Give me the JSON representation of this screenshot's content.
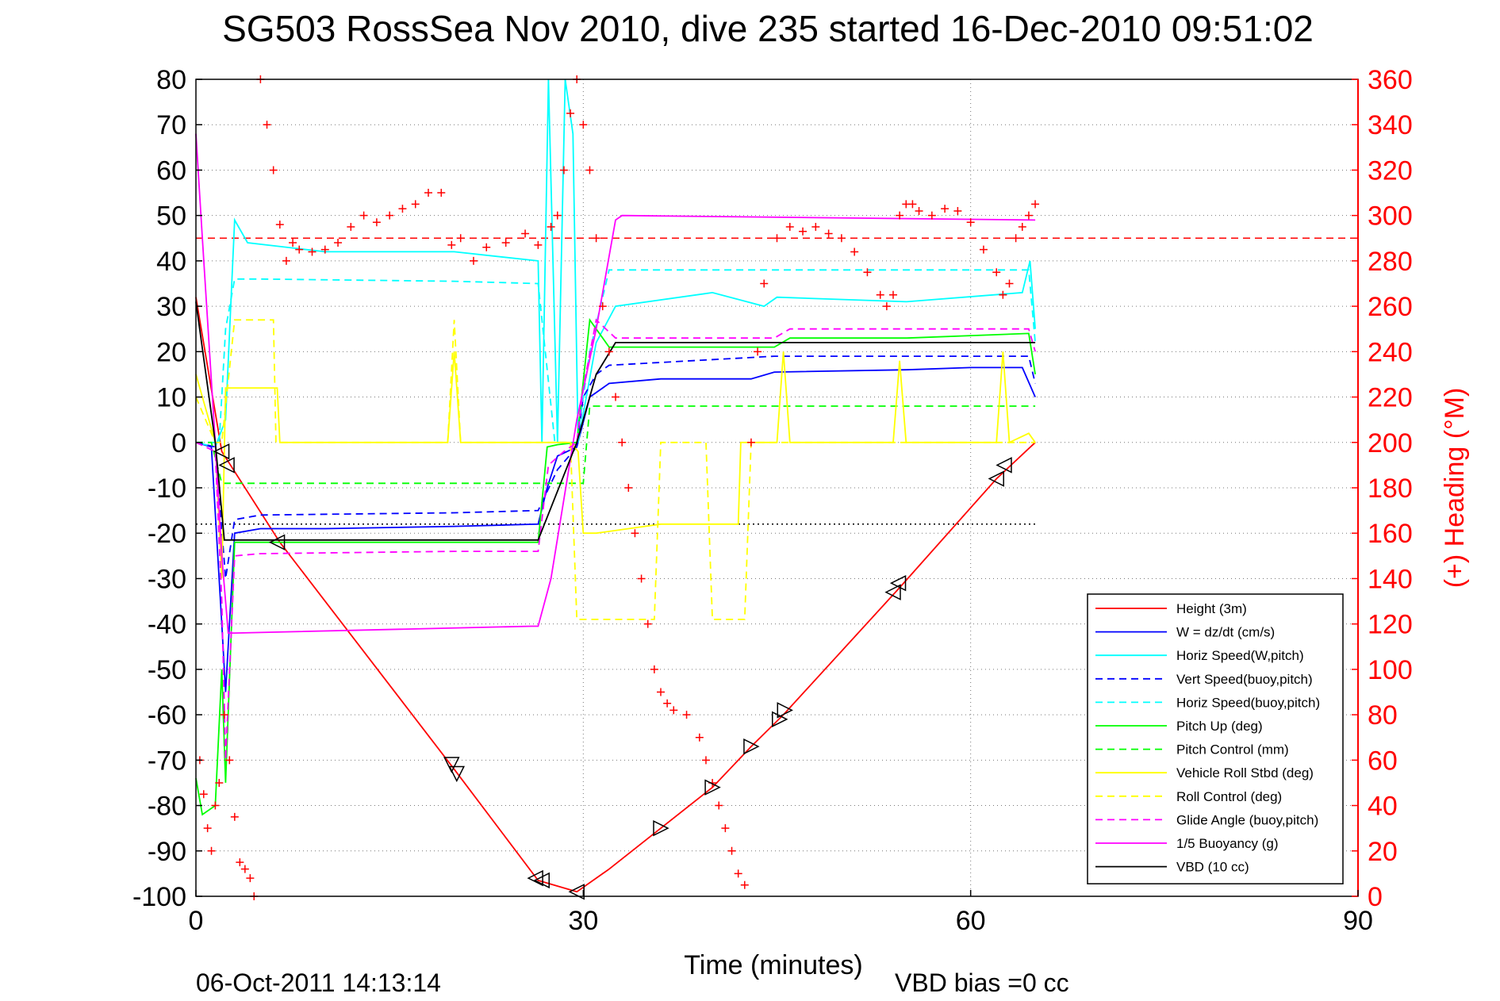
{
  "chart_data": {
    "type": "line",
    "title": "SG503 RossSea Nov 2010, dive 235 started 16-Dec-2010 09:51:02",
    "xlabel": "Time (minutes)",
    "ylabel": "",
    "ylabel_right": "(+) Heading (°M)",
    "xlim": [
      0,
      90
    ],
    "ylim": [
      -100,
      80
    ],
    "ylim_right": [
      0,
      360
    ],
    "x_ticks": [
      "0",
      "30",
      "60",
      "90"
    ],
    "y_ticks": [
      "80",
      "70",
      "60",
      "50",
      "40",
      "30",
      "20",
      "10",
      "0",
      "-10",
      "-20",
      "-30",
      "-40",
      "-50",
      "-60",
      "-70",
      "-80",
      "-90",
      "-100"
    ],
    "y_right_ticks": [
      "360",
      "340",
      "320",
      "300",
      "280",
      "260",
      "240",
      "220",
      "200",
      "180",
      "160",
      "140",
      "120",
      "100",
      "80",
      "60",
      "40",
      "20",
      "0"
    ],
    "grid": true,
    "legend_position": "bottom-right",
    "footer_left": "06-Oct-2011 14:13:14",
    "footer_right": "VBD bias =0 cc",
    "series": [
      {
        "name": "Height (3m)",
        "color": "#ff0000",
        "dash": "solid",
        "x": [
          0,
          2,
          6.5,
          20,
          26.5,
          29.5,
          32,
          36,
          40,
          43,
          45.5,
          54.5,
          62,
          65
        ],
        "y": [
          32,
          -2,
          -22,
          -72,
          -96.5,
          -99,
          -94,
          -85,
          -76,
          -67,
          -60,
          -32,
          -8,
          0
        ]
      },
      {
        "name": "W = dz/dt (cm/s)",
        "color": "#0000ff",
        "dash": "solid",
        "x": [
          0,
          1.2,
          2,
          2.3,
          3,
          5,
          10,
          20,
          26.5,
          27.2,
          28,
          29.5,
          30.5,
          32,
          36,
          43,
          44.8,
          55,
          60,
          64,
          65
        ],
        "y": [
          0,
          -1,
          -40,
          -55,
          -20,
          -19,
          -19,
          -18.5,
          -18,
          -10,
          -3,
          -1,
          10,
          13,
          14,
          14,
          15.5,
          16,
          16.5,
          16.5,
          10
        ]
      },
      {
        "name": "Horiz Speed(W,pitch)",
        "color": "#00ffff",
        "dash": "solid",
        "x": [
          0,
          1.5,
          2.3,
          3,
          4,
          10,
          20,
          26.5,
          26.8,
          27.3,
          28,
          28.6,
          29.2,
          29.6,
          31,
          32.5,
          40,
          44,
          45,
          55,
          64,
          64.6,
          65
        ],
        "y": [
          0,
          -1,
          5,
          49,
          44,
          42,
          42,
          40,
          0,
          80,
          0,
          80,
          68,
          0,
          22,
          30,
          33,
          30,
          32,
          31,
          33,
          40,
          25
        ]
      },
      {
        "name": "Vert Speed(buoy,pitch)",
        "color": "#0000ff",
        "dash": "dashed",
        "x": [
          0,
          1.5,
          2.3,
          3,
          5,
          20,
          26.5,
          28,
          29.5,
          30,
          31,
          32,
          44.8,
          55,
          64.5,
          65
        ],
        "y": [
          0,
          -1,
          -30,
          -17,
          -16,
          -15.5,
          -15,
          -6,
          -1,
          10,
          15,
          17,
          19,
          19,
          19,
          13
        ]
      },
      {
        "name": "Horiz Speed(buoy,pitch)",
        "color": "#00ffff",
        "dash": "dashed",
        "x": [
          0,
          1.8,
          2.3,
          3,
          5,
          20,
          26.5,
          27.8,
          29.5,
          30.5,
          32,
          40,
          64.5,
          65
        ],
        "y": [
          0,
          0,
          25,
          36,
          36,
          35.5,
          35,
          0,
          0,
          20,
          38,
          38,
          38,
          22
        ]
      },
      {
        "name": "Pitch Up (deg)",
        "color": "#00ff00",
        "dash": "solid",
        "x": [
          0,
          0.5,
          1.5,
          2,
          2.3,
          3,
          5,
          20,
          26.5,
          27.2,
          28,
          29.5,
          30.5,
          32,
          44.8,
          46,
          55,
          64.5,
          65
        ],
        "y": [
          -74,
          -82,
          -80,
          -50,
          -75,
          -22,
          -22,
          -22,
          -22,
          -1,
          -0.5,
          0,
          27,
          21,
          21,
          23,
          23,
          24,
          15
        ]
      },
      {
        "name": "Pitch Control (mm)",
        "color": "#00ff00",
        "dash": "dashed",
        "x": [
          0,
          1.2,
          2,
          3,
          10,
          26.5,
          30,
          30.5,
          35,
          65
        ],
        "y": [
          0,
          0,
          -9,
          -9,
          -9,
          -9,
          -9,
          8,
          8,
          8
        ]
      },
      {
        "name": "Vehicle Roll Stbd (deg)",
        "color": "#ffff00",
        "dash": "solid",
        "x": [
          0,
          1.5,
          2,
          2.3,
          5,
          6.3,
          6.5,
          19.5,
          20,
          20.5,
          26.5,
          26.8,
          29,
          29.6,
          30,
          31,
          36,
          36.2,
          42,
          42.2,
          45,
          45.5,
          46,
          54,
          54.5,
          55,
          62,
          62.5,
          63,
          64.5,
          65
        ],
        "y": [
          15,
          0,
          -30,
          12,
          12,
          12,
          0,
          0,
          20,
          0,
          0,
          0,
          0,
          -2,
          -20,
          -20,
          -18,
          -18,
          -18,
          0,
          0,
          20,
          0,
          0,
          18,
          0,
          0,
          20,
          0,
          2,
          0
        ]
      },
      {
        "name": "Roll Control (deg)",
        "color": "#ffff00",
        "dash": "dashed",
        "x": [
          0,
          1.5,
          2,
          3,
          6,
          6.2,
          19.5,
          20,
          20.5,
          26.5,
          29,
          29.5,
          35.5,
          36,
          39.5,
          40,
          42.5,
          43,
          65
        ],
        "y": [
          10,
          0,
          0,
          27,
          27,
          0,
          0,
          27,
          0,
          0,
          0,
          -39,
          -39,
          0,
          0,
          -39,
          -39,
          0,
          0
        ]
      },
      {
        "name": "Glide Angle (buoy,pitch)",
        "color": "#ff00ff",
        "dash": "dashed",
        "x": [
          0,
          1.5,
          2,
          2.3,
          3,
          5,
          20,
          26.5,
          27.3,
          28.5,
          29.5,
          30,
          31,
          32.5,
          44.8,
          46,
          55,
          64.5,
          65
        ],
        "y": [
          0,
          -2,
          -35,
          -70,
          -25,
          -24.5,
          -24,
          -24,
          -5,
          -2,
          0,
          12,
          27,
          23,
          23,
          25,
          25,
          25,
          20
        ]
      },
      {
        "name": "1/5 Buoyancy (g)",
        "color": "#ff00ff",
        "dash": "solid",
        "x": [
          0,
          0.5,
          1.5,
          2,
          2.5,
          3,
          26,
          26.5,
          27.5,
          29.5,
          31,
          32.5,
          33,
          65
        ],
        "y": [
          68,
          45,
          0,
          -25,
          -42,
          -42,
          -40.5,
          -40.5,
          -30,
          5,
          25,
          49,
          50,
          49
        ]
      },
      {
        "name": "VBD (10 cc)",
        "color": "#000000",
        "dash": "solid",
        "x": [
          0,
          1.5,
          2.2,
          3,
          26,
          26.5,
          29.5,
          31,
          32.5,
          33,
          65
        ],
        "y": [
          31,
          0,
          -21.5,
          -21.5,
          -21.5,
          -21.5,
          0,
          15,
          22,
          22,
          22
        ]
      }
    ],
    "reference_lines": [
      {
        "color": "#ff0000",
        "dash": "dashed",
        "axis": "right",
        "value": 290
      },
      {
        "color": "#000000",
        "dash": "dotted",
        "axis": "left",
        "value": -18,
        "x": [
          0,
          65
        ]
      }
    ],
    "heading_points": {
      "name": "(+) Heading (°M)",
      "color": "#ff0000",
      "marker": "+",
      "axis": "right",
      "x": [
        0.3,
        0.6,
        0.9,
        1.2,
        1.5,
        1.8,
        2.2,
        2.6,
        3.0,
        3.4,
        3.8,
        4.2,
        4.5,
        5.0,
        5.5,
        6.0,
        6.5,
        7.0,
        7.5,
        8.0,
        9.0,
        10.0,
        11.0,
        12.0,
        13.0,
        14.0,
        15.0,
        16.0,
        17.0,
        18.0,
        19.0,
        19.8,
        20.5,
        21.5,
        22.5,
        24.0,
        25.5,
        26.5,
        27.5,
        28.0,
        28.5,
        29.0,
        29.5,
        30.0,
        30.5,
        31.0,
        31.5,
        32.0,
        32.5,
        33.0,
        33.5,
        34.0,
        34.5,
        35.0,
        35.5,
        36.0,
        36.5,
        37.0,
        38.0,
        39.0,
        39.5,
        40.0,
        40.5,
        41.0,
        41.5,
        42.0,
        42.5,
        43.0,
        43.5,
        44.0,
        45.0,
        46.0,
        47.0,
        48.0,
        49.0,
        50.0,
        51.0,
        52.0,
        53.0,
        53.5,
        54.0,
        54.5,
        55.0,
        55.5,
        56.0,
        57.0,
        58.0,
        59.0,
        60.0,
        61.0,
        62.0,
        62.5,
        63.0,
        63.5,
        64.0,
        64.5,
        65.0
      ],
      "y": [
        60,
        45,
        30,
        20,
        40,
        50,
        80,
        60,
        35,
        15,
        12,
        8,
        0,
        360,
        340,
        320,
        296,
        280,
        288,
        285,
        284,
        285,
        288,
        295,
        300,
        297,
        300,
        303,
        305,
        310,
        310,
        287,
        290,
        280,
        286,
        288,
        292,
        287,
        295,
        300,
        320,
        345,
        360,
        340,
        320,
        290,
        260,
        240,
        220,
        200,
        180,
        160,
        140,
        120,
        100,
        90,
        85,
        82,
        80,
        70,
        60,
        50,
        40,
        30,
        20,
        10,
        5,
        200,
        240,
        270,
        290,
        295,
        293,
        295,
        292,
        290,
        284,
        275,
        265,
        260,
        265,
        300,
        305,
        305,
        302,
        300,
        303,
        302,
        297,
        285,
        275,
        265,
        270,
        290,
        295,
        300,
        305
      ]
    },
    "depth_markers": {
      "color": "#000000",
      "x": [
        2,
        2.4,
        6.3,
        19.8,
        20.2,
        26.3,
        26.8,
        29.5,
        36,
        40,
        43,
        45.2,
        45.6,
        54,
        54.4,
        62,
        62.6
      ],
      "y": [
        -2,
        -5,
        -22,
        -71,
        -73,
        -96,
        -96.5,
        -99,
        -85,
        -76,
        -67,
        -61,
        -59,
        -33,
        -31,
        -8,
        -5
      ],
      "directions": [
        "left",
        "left",
        "left",
        "down",
        "down",
        "left",
        "left",
        "left",
        "right",
        "right",
        "right",
        "right",
        "right",
        "left",
        "left",
        "left",
        "left"
      ]
    }
  }
}
